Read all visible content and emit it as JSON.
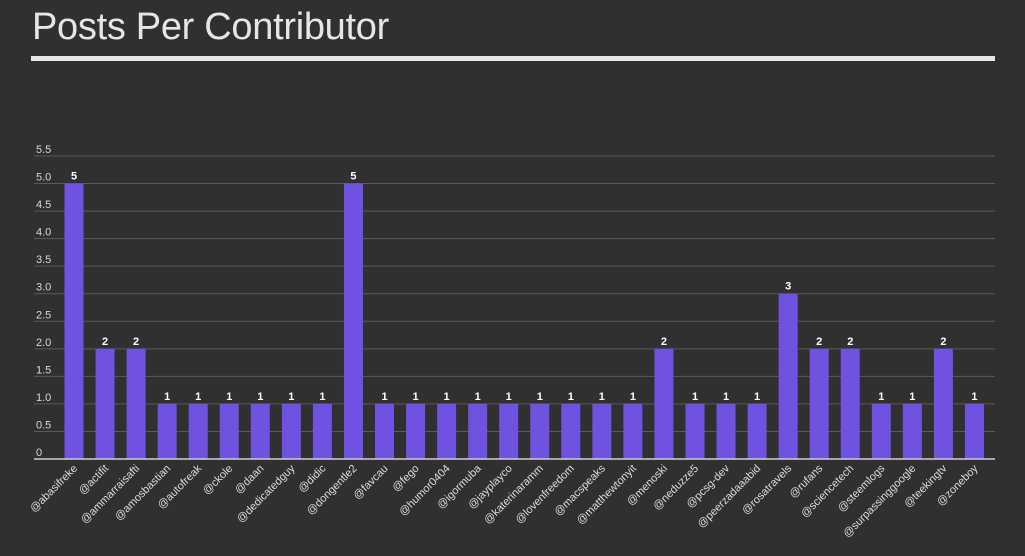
{
  "header": {
    "title": "Posts Per Contributor"
  },
  "colors": {
    "background": "#303030",
    "bar": "#6f52e0",
    "grid": "#5a5a5a",
    "axis": "#d0d0d0",
    "text": "#e6e6e6"
  },
  "chart_data": {
    "type": "bar",
    "title": "Posts Per Contributor",
    "xlabel": "",
    "ylabel": "",
    "ylim": [
      0,
      5.5
    ],
    "yticks": [
      "0",
      "0.5",
      "1.0",
      "1.5",
      "2.0",
      "2.5",
      "3.0",
      "3.5",
      "4.0",
      "4.5",
      "5.0",
      "5.5"
    ],
    "grid": true,
    "legend": "none",
    "categories": [
      "@abasifreke",
      "@actifit",
      "@ammarraisafti",
      "@amosbastian",
      "@autofreak",
      "@ckole",
      "@daan",
      "@dedicatedguy",
      "@didic",
      "@dongentle2",
      "@favcau",
      "@fego",
      "@humor0404",
      "@igormuba",
      "@jayplayco",
      "@katerinaramm",
      "@lovenfreedom",
      "@macspeaks",
      "@matthewtonyit",
      "@menoski",
      "@neduzze5",
      "@pcsg-dev",
      "@peerzadaaabid",
      "@rosatravels",
      "@rufans",
      "@sciencetech",
      "@steemlogs",
      "@surpassinggoogle",
      "@teekingtv",
      "@zoneboy"
    ],
    "values": [
      5,
      2,
      2,
      1,
      1,
      1,
      1,
      1,
      1,
      5,
      1,
      1,
      1,
      1,
      1,
      1,
      1,
      1,
      1,
      2,
      1,
      1,
      1,
      3,
      2,
      2,
      1,
      1,
      2,
      1
    ]
  }
}
